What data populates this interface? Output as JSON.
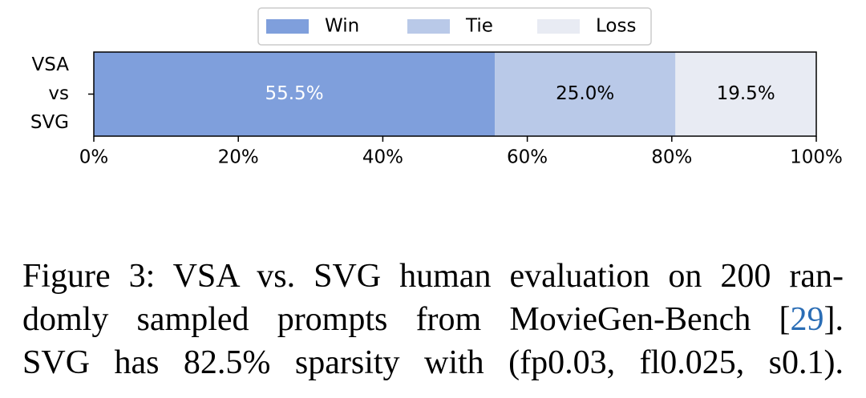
{
  "chart_data": {
    "type": "stacked-barh",
    "categories": [
      "VSA\nvs\nSVG"
    ],
    "series": [
      {
        "name": "Win",
        "color": "#7f9fdc",
        "label_color": "#ffffff",
        "values": [
          55.5
        ],
        "value_labels": [
          "55.5%"
        ]
      },
      {
        "name": "Tie",
        "color": "#b9c9e8",
        "label_color": "#000000",
        "values": [
          25.0
        ],
        "value_labels": [
          "25.0%"
        ]
      },
      {
        "name": "Loss",
        "color": "#e8ebf3",
        "label_color": "#000000",
        "values": [
          19.5
        ],
        "value_labels": [
          "19.5%"
        ]
      }
    ],
    "xlim": [
      0,
      100
    ],
    "xticks": [
      {
        "value": 0,
        "label": "0%"
      },
      {
        "value": 20,
        "label": "20%"
      },
      {
        "value": 40,
        "label": "40%"
      },
      {
        "value": 60,
        "label": "60%"
      },
      {
        "value": 80,
        "label": "80%"
      },
      {
        "value": 100,
        "label": "100%"
      }
    ],
    "legend": "top"
  },
  "caption": {
    "lines": [
      [
        "Figure 3: VSA vs. SVG human evaluation on 200 ran-"
      ],
      [
        "domly sampled prompts from MovieGen-Bench [",
        "29",
        "]."
      ],
      [
        "SVG has 82.5% sparsity with (fp0.03, fl0.025, s0.1)."
      ]
    ]
  }
}
